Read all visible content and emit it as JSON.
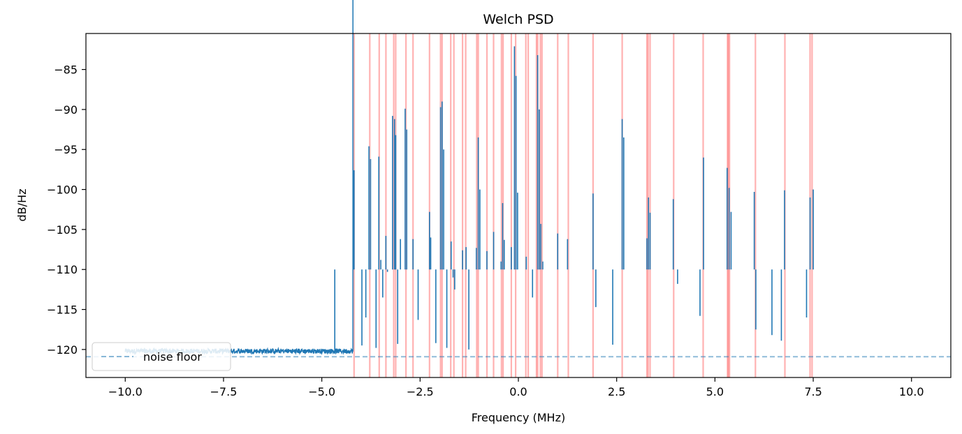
{
  "chart_data": {
    "type": "line",
    "title": "Welch PSD",
    "xlabel": "Frequency (MHz)",
    "ylabel": "dB/Hz",
    "xlim": [
      -11.0,
      11.0
    ],
    "ylim": [
      -123.5,
      -80.5
    ],
    "xticks": [
      -10.0,
      -7.5,
      -5.0,
      -2.5,
      0.0,
      2.5,
      5.0,
      7.5,
      10.0
    ],
    "xtick_labels": [
      "−10.0",
      "−7.5",
      "−5.0",
      "−2.5",
      "0.0",
      "2.5",
      "5.0",
      "7.5",
      "10.0"
    ],
    "yticks": [
      -85,
      -90,
      -95,
      -100,
      -105,
      -110,
      -115,
      -120
    ],
    "ytick_labels": [
      "−85",
      "−90",
      "−95",
      "−100",
      "−105",
      "−110",
      "−115",
      "−120"
    ],
    "grid": false,
    "legend": {
      "placement": "lower-left",
      "entries": [
        "noise floor"
      ]
    },
    "noise_floor": -120.9,
    "series": [
      {
        "color": "#1f77b4",
        "baseline": -121.0,
        "x_range": [
          -10.0,
          10.0
        ],
        "peaks": [
          {
            "x": -4.67,
            "y": -120.4
          },
          {
            "x": -4.18,
            "y": -97.6
          },
          {
            "x": -3.98,
            "y": -119.5
          },
          {
            "x": -3.88,
            "y": -116.0
          },
          {
            "x": -3.8,
            "y": -94.6
          },
          {
            "x": -3.76,
            "y": -96.2
          },
          {
            "x": -3.62,
            "y": -119.8
          },
          {
            "x": -3.55,
            "y": -95.9
          },
          {
            "x": -3.5,
            "y": -108.8
          },
          {
            "x": -3.45,
            "y": -113.5
          },
          {
            "x": -3.37,
            "y": -105.8
          },
          {
            "x": -3.33,
            "y": -110.3
          },
          {
            "x": -3.2,
            "y": -90.8
          },
          {
            "x": -3.15,
            "y": -91.2
          },
          {
            "x": -3.12,
            "y": -93.2
          },
          {
            "x": -3.07,
            "y": -119.3
          },
          {
            "x": -3.0,
            "y": -106.2
          },
          {
            "x": -2.88,
            "y": -89.9
          },
          {
            "x": -2.84,
            "y": -92.5
          },
          {
            "x": -2.68,
            "y": -106.2
          },
          {
            "x": -2.55,
            "y": -116.3
          },
          {
            "x": -2.26,
            "y": -102.8
          },
          {
            "x": -2.23,
            "y": -106.0
          },
          {
            "x": -2.1,
            "y": -119.2
          },
          {
            "x": -1.98,
            "y": -89.7
          },
          {
            "x": -1.94,
            "y": -89.0
          },
          {
            "x": -1.9,
            "y": -95.0
          },
          {
            "x": -1.82,
            "y": -119.8
          },
          {
            "x": -1.71,
            "y": -106.5
          },
          {
            "x": -1.66,
            "y": -111.0
          },
          {
            "x": -1.62,
            "y": -112.5
          },
          {
            "x": -1.42,
            "y": -107.6
          },
          {
            "x": -1.33,
            "y": -107.2
          },
          {
            "x": -1.26,
            "y": -120.0
          },
          {
            "x": -1.07,
            "y": -107.3
          },
          {
            "x": -1.02,
            "y": -93.5
          },
          {
            "x": -0.98,
            "y": -100.0
          },
          {
            "x": -0.8,
            "y": -107.7
          },
          {
            "x": -0.63,
            "y": -105.3
          },
          {
            "x": -0.44,
            "y": -109.0
          },
          {
            "x": -0.4,
            "y": -101.7
          },
          {
            "x": -0.36,
            "y": -106.3
          },
          {
            "x": -0.18,
            "y": -107.2
          },
          {
            "x": -0.1,
            "y": -82.1
          },
          {
            "x": -0.06,
            "y": -85.8
          },
          {
            "x": -0.02,
            "y": -100.4
          },
          {
            "x": 0.2,
            "y": -108.4
          },
          {
            "x": 0.24,
            "y": -110.0
          },
          {
            "x": 0.36,
            "y": -113.5
          },
          {
            "x": 0.49,
            "y": -83.2
          },
          {
            "x": 0.53,
            "y": -90.0
          },
          {
            "x": 0.57,
            "y": -104.3
          },
          {
            "x": 0.62,
            "y": -109.0
          },
          {
            "x": 1.0,
            "y": -105.5
          },
          {
            "x": 1.25,
            "y": -106.2
          },
          {
            "x": 1.9,
            "y": -100.5
          },
          {
            "x": 1.97,
            "y": -114.7
          },
          {
            "x": 2.4,
            "y": -119.4
          },
          {
            "x": 2.64,
            "y": -91.2
          },
          {
            "x": 2.68,
            "y": -93.5
          },
          {
            "x": 3.27,
            "y": -106.1
          },
          {
            "x": 3.31,
            "y": -101.0
          },
          {
            "x": 3.35,
            "y": -102.9
          },
          {
            "x": 3.94,
            "y": -101.2
          },
          {
            "x": 4.05,
            "y": -111.8
          },
          {
            "x": 4.62,
            "y": -115.8
          },
          {
            "x": 4.71,
            "y": -96.0
          },
          {
            "x": 5.31,
            "y": -97.3
          },
          {
            "x": 5.36,
            "y": -99.8
          },
          {
            "x": 5.41,
            "y": -102.8
          },
          {
            "x": 6.0,
            "y": -100.3
          },
          {
            "x": 6.04,
            "y": -117.5
          },
          {
            "x": 6.45,
            "y": -118.2
          },
          {
            "x": 6.69,
            "y": -118.9
          },
          {
            "x": 6.77,
            "y": -100.1
          },
          {
            "x": 7.33,
            "y": -116.0
          },
          {
            "x": 7.42,
            "y": -101.0
          },
          {
            "x": 7.5,
            "y": -100.0
          }
        ]
      }
    ],
    "detections": [
      -4.18,
      -3.78,
      -3.54,
      -3.37,
      -3.17,
      -3.12,
      -2.86,
      -2.68,
      -2.26,
      -1.98,
      -1.94,
      -1.72,
      -1.64,
      -1.42,
      -1.34,
      -1.06,
      -1.02,
      -0.8,
      -0.63,
      -0.43,
      -0.39,
      -0.18,
      -0.07,
      0.19,
      0.25,
      0.46,
      0.49,
      0.56,
      0.6,
      1.0,
      1.27,
      1.9,
      2.64,
      3.27,
      3.3,
      3.35,
      3.95,
      4.7,
      5.32,
      5.34,
      5.37,
      6.03,
      6.78,
      7.42,
      7.47
    ]
  }
}
